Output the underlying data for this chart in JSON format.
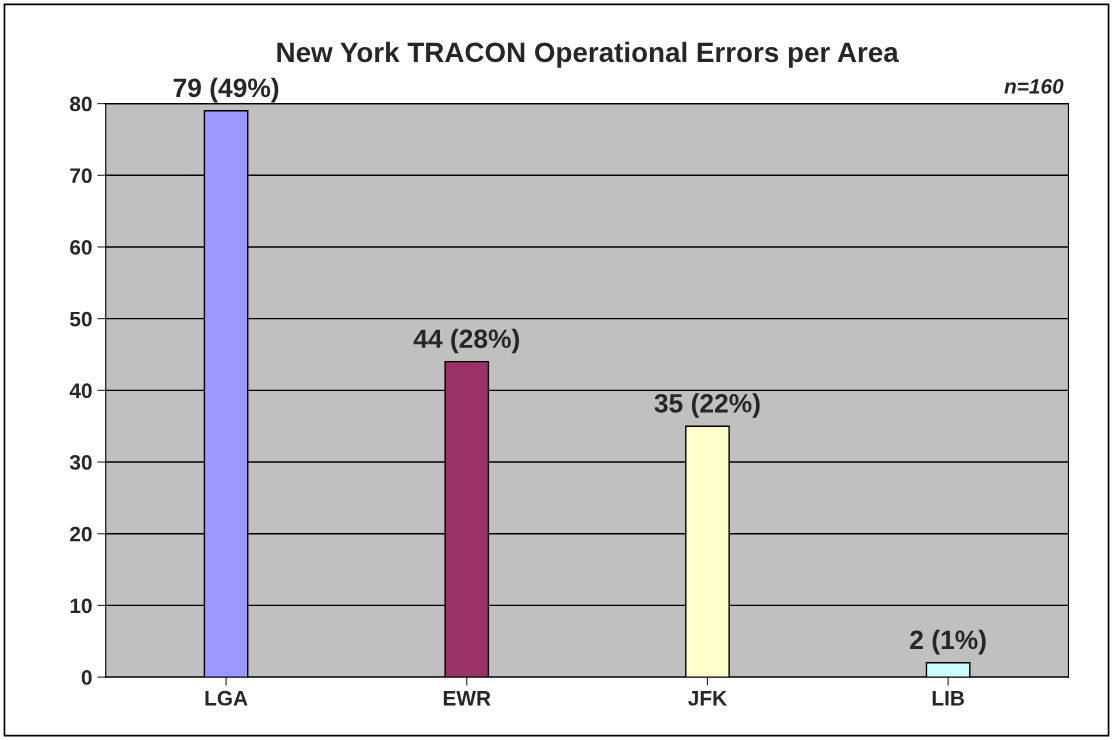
{
  "chart_data": {
    "type": "bar",
    "title": "New York TRACON Operational Errors per Area",
    "categories": [
      "LGA",
      "EWR",
      "JFK",
      "LIB"
    ],
    "values": [
      79,
      44,
      35,
      2
    ],
    "colors": [
      "#9999ff",
      "#993366",
      "#ffffcc",
      "#ccffff"
    ],
    "value_labels": [
      "79 (49%)",
      "44 (28%)",
      "35 (22%)",
      "2 (1%)"
    ],
    "annotations": [
      "n=160"
    ],
    "ylim": [
      0,
      80
    ],
    "yticks": [
      0,
      10,
      20,
      30,
      40,
      50,
      60,
      70,
      80
    ],
    "grid": "y"
  }
}
